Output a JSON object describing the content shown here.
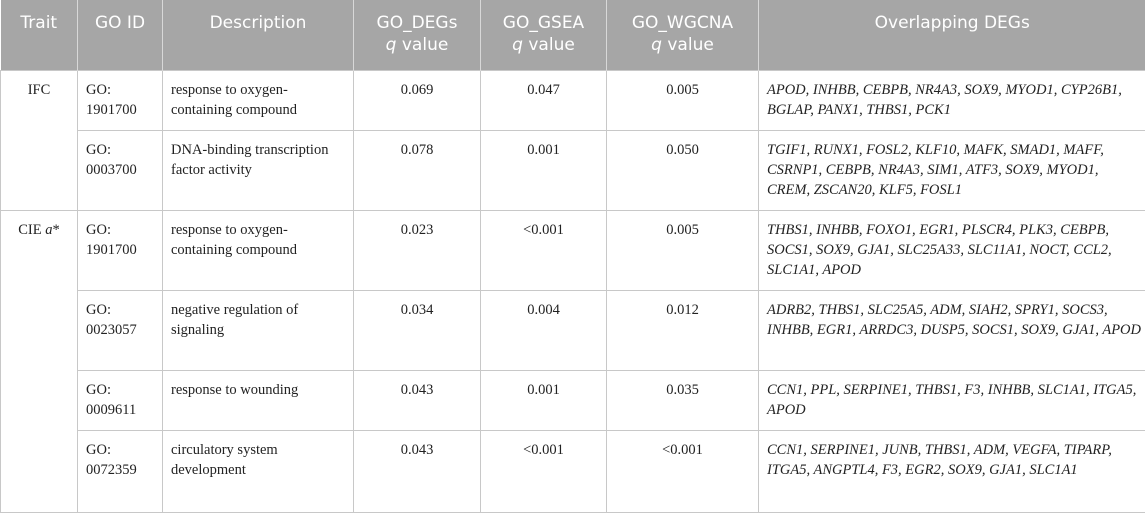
{
  "table": {
    "columns": [
      {
        "name": "Trait"
      },
      {
        "name": "GO ID"
      },
      {
        "name": "Description"
      },
      {
        "name": "GO_DEGs",
        "italic": "q",
        "rest": " value"
      },
      {
        "name": "GO_GSEA",
        "italic": "q",
        "rest": " value"
      },
      {
        "name": "GO_WGCNA",
        "italic": "q",
        "rest": " value"
      },
      {
        "name": "Overlapping DEGs"
      }
    ],
    "groups": [
      {
        "trait": {
          "text": "IFC"
        },
        "rows": [
          [
            "GO: 1901700",
            "response to oxygen-containing compound",
            "0.069",
            "0.047",
            "0.005",
            "APOD, INHBB, CEBPB, NR4A3, SOX9, MYOD1, CYP26B1, BGLAP, PANX1, THBS1, PCK1"
          ],
          [
            "GO: 0003700",
            "DNA-binding transcription factor activity",
            "0.078",
            "0.001",
            "0.050",
            "TGIF1, RUNX1, FOSL2, KLF10, MAFK, SMAD1, MAFF, CSRNP1, CEBPB, NR4A3, SIM1, ATF3, SOX9, MYOD1, CREM, ZSCAN20, KLF5, FOSL1"
          ]
        ]
      },
      {
        "trait": {
          "text": "CIE ",
          "italic": "a",
          "rest": "*"
        },
        "rows": [
          [
            "GO: 1901700",
            "response to oxygen-containing compound",
            "0.023",
            "<0.001",
            "0.005",
            "THBS1, INHBB, FOXO1, EGR1, PLSCR4, PLK3, CEBPB, SOCS1, SOX9, GJA1, SLC25A33, SLC11A1, NOCT, CCL2, SLC1A1, APOD"
          ],
          [
            "GO: 0023057",
            "negative regulation of signaling",
            "0.034",
            "0.004",
            "0.012",
            "ADRB2, THBS1, SLC25A5, ADM, SIAH2, SPRY1, SOCS3, INHBB, EGR1, ARRDC3, DUSP5, SOCS1, SOX9, GJA1, APOD"
          ],
          [
            "GO: 0009611",
            "response to wounding",
            "0.043",
            "0.001",
            "0.035",
            "CCN1, PPL, SERPINE1, THBS1, F3, INHBB, SLC1A1, ITGA5, APOD"
          ],
          [
            "GO: 0072359",
            "circulatory system development",
            "0.043",
            "<0.001",
            "<0.001",
            "CCN1, SERPINE1, JUNB, THBS1, ADM, VEGFA, TIPARP, ITGA5, ANGPTL4, F3, EGR2, SOX9, GJA1, SLC1A1"
          ]
        ]
      }
    ]
  }
}
